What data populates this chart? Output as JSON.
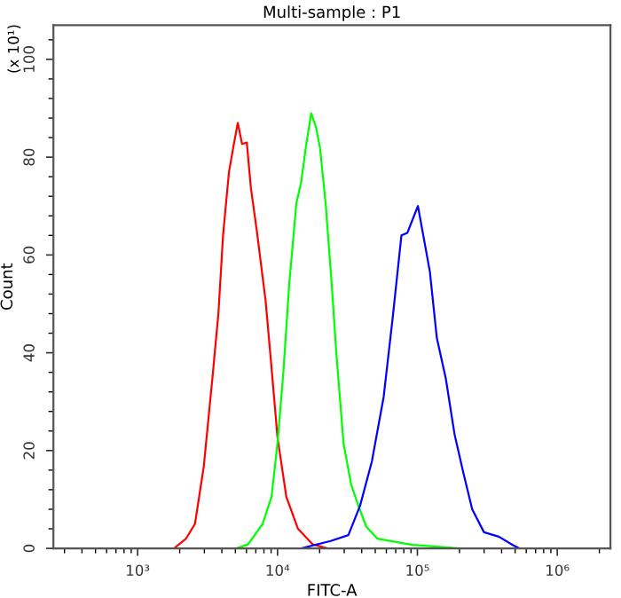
{
  "chart_data": {
    "type": "line",
    "title": "Multi-sample : P1",
    "xlabel": "FITC-A",
    "ylabel": "Count",
    "annotations": [
      "(x 10¹)"
    ],
    "log": "x",
    "xlim": [
      250,
      2400000
    ],
    "xticks": [
      {
        "value": 1000,
        "label": "10³"
      },
      {
        "value": 10000,
        "label": "10⁴"
      },
      {
        "value": 100000,
        "label": "10⁵"
      },
      {
        "value": 1000000,
        "label": "10⁶"
      }
    ],
    "ylim": [
      0,
      107
    ],
    "yticks": [
      0,
      20,
      40,
      60,
      80,
      100
    ],
    "grid": false,
    "marker": "none",
    "line_style": "solid",
    "series": [
      {
        "color": "#ff0000",
        "x": [
          1820,
          2220,
          2570,
          2970,
          3430,
          3780,
          4080,
          4500,
          4830,
          5200,
          5580,
          6030,
          6460,
          7110,
          8230,
          9060,
          10000,
          11570,
          14020,
          17900,
          22800
        ],
        "values": [
          0,
          2,
          5,
          16.7,
          35,
          48,
          64,
          77,
          82,
          87,
          82.7,
          83,
          73.6,
          65,
          50.5,
          37,
          22.7,
          10.5,
          4,
          0.8,
          0
        ]
      },
      {
        "color": "#00ff00",
        "x": [
          5060,
          6150,
          7830,
          9060,
          10000,
          11010,
          12130,
          13630,
          14740,
          15940,
          17410,
          18770,
          20120,
          22170,
          24400,
          26400,
          29650,
          33630,
          37150,
          42980,
          51640,
          92440,
          203000
        ],
        "values": [
          0,
          0.8,
          5,
          10.5,
          21.5,
          36,
          54,
          70.5,
          74.8,
          82,
          89,
          86.3,
          82,
          70,
          54,
          39.6,
          21.5,
          13,
          9.4,
          4.5,
          2,
          0.7,
          0
        ]
      },
      {
        "color": "#0000ff",
        "x": [
          14740,
          23990,
          32100,
          38900,
          47300,
          57420,
          66500,
          76900,
          84700,
          100900,
          113500,
          122800,
          137800,
          159500,
          184500,
          213400,
          246600,
          299200,
          382100,
          486600,
          535800
        ],
        "values": [
          0,
          1.5,
          2.7,
          8.7,
          17.8,
          31,
          47,
          64,
          64.5,
          70,
          62,
          56.6,
          43,
          34.8,
          23.3,
          15.4,
          8,
          3.3,
          2.4,
          0.6,
          0
        ]
      }
    ]
  }
}
